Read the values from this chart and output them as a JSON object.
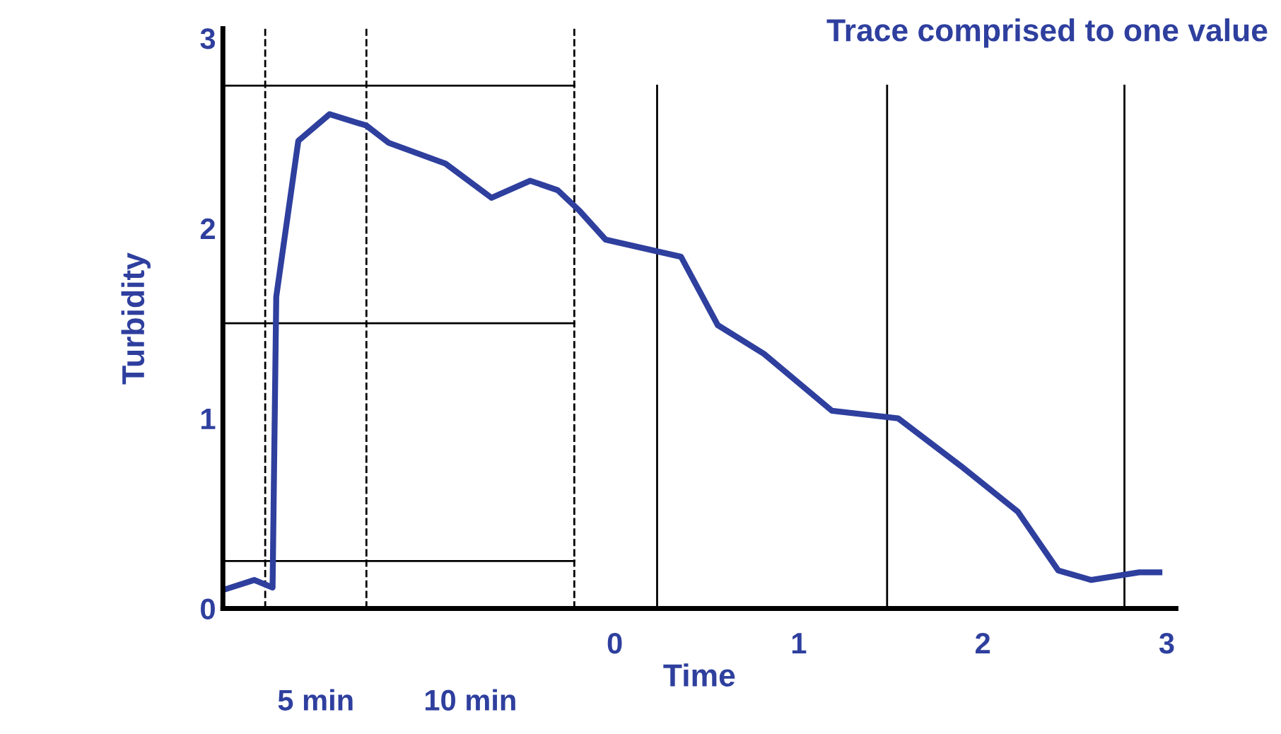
{
  "chart_data": {
    "type": "line",
    "title": "Trace comprised to one value",
    "xlabel": "Time",
    "ylabel": "Turbidity",
    "x": [
      -2.12,
      -1.96,
      -1.86,
      -1.84,
      -1.72,
      -1.55,
      -1.35,
      -1.23,
      -0.92,
      -0.67,
      -0.46,
      -0.31,
      -0.19,
      -0.05,
      0.36,
      0.56,
      0.81,
      1.18,
      1.54,
      1.88,
      2.19,
      2.41,
      2.59,
      2.85,
      2.96
    ],
    "series": [
      {
        "color": "#2e3f9e",
        "values": [
          0.1,
          0.15,
          0.11,
          1.64,
          2.46,
          2.6,
          2.54,
          2.45,
          2.34,
          2.16,
          2.25,
          2.2,
          2.09,
          1.94,
          1.85,
          1.49,
          1.34,
          1.04,
          1.0,
          0.75,
          0.51,
          0.2,
          0.15,
          0.19,
          0.19
        ]
      }
    ],
    "xlim": [
      -2.13,
      3.05
    ],
    "ylim": [
      0,
      3.05
    ],
    "xticks": [
      0,
      1,
      2,
      3
    ],
    "yticks": [
      0,
      1,
      2,
      3
    ],
    "ref_lines": [
      {
        "axis": "y",
        "value": 0.25,
        "color": "#000000",
        "line_style": "solid"
      },
      {
        "axis": "y",
        "value": 1.5,
        "color": "#000000",
        "line_style": "solid"
      },
      {
        "axis": "y",
        "value": 2.75,
        "color": "#000000",
        "line_style": "solid"
      },
      {
        "axis": "x",
        "value": -1.9,
        "color": "#000000",
        "line_style": "dashed"
      },
      {
        "axis": "x",
        "value": -1.35,
        "color": "#000000",
        "line_style": "dashed"
      },
      {
        "axis": "x",
        "value": -0.22,
        "color": "#000000",
        "line_style": "dashed"
      },
      {
        "axis": "x",
        "value": 0.23,
        "color": "#000000",
        "line_style": "solid"
      },
      {
        "axis": "x",
        "value": 1.48,
        "color": "#000000",
        "line_style": "solid"
      },
      {
        "axis": "x",
        "value": 2.77,
        "color": "#000000",
        "line_style": "solid"
      }
    ],
    "annotations": [
      "5 min",
      "10 min"
    ],
    "grid": false,
    "legend": false,
    "marker": "none",
    "line_style": "solid"
  }
}
